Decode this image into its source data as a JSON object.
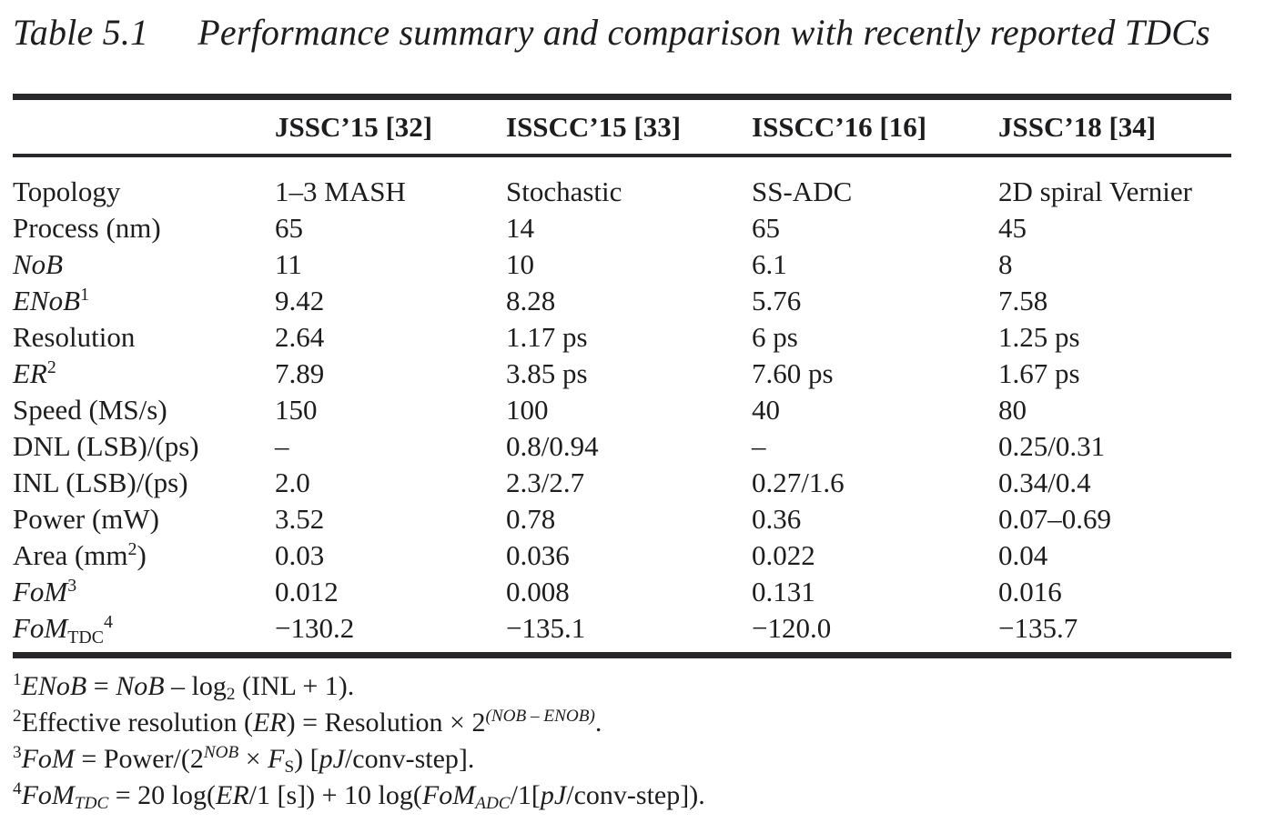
{
  "page": {
    "background_color": "#ffffff",
    "text_color": "#1d1d1f",
    "rule_color": "#28282a"
  },
  "title": {
    "label": "Table 5.1",
    "text": "Performance summary and comparison with recently reported TDCs"
  },
  "table": {
    "columns": [
      "",
      "JSSC’15 [32]",
      "ISSCC’15 [33]",
      "ISSCC’16 [16]",
      "JSSC’18 [34]"
    ],
    "rows": [
      {
        "label": [
          {
            "t": "Topology"
          }
        ],
        "values": [
          "1–3 MASH",
          "Stochastic",
          "SS-ADC",
          "2D spiral Vernier"
        ]
      },
      {
        "label": [
          {
            "t": "Process (nm)"
          }
        ],
        "values": [
          "65",
          "14",
          "65",
          "45"
        ]
      },
      {
        "label": [
          {
            "t": "NoB",
            "s": "i"
          }
        ],
        "values": [
          "11",
          "10",
          "6.1",
          "8"
        ]
      },
      {
        "label": [
          {
            "t": "ENoB",
            "s": "i"
          },
          {
            "t": "1",
            "s": "sup"
          }
        ],
        "values": [
          "9.42",
          "8.28",
          "5.76",
          "7.58"
        ]
      },
      {
        "label": [
          {
            "t": "Resolution"
          }
        ],
        "values": [
          "2.64",
          "1.17 ps",
          "6 ps",
          "1.25 ps"
        ]
      },
      {
        "label": [
          {
            "t": "ER",
            "s": "i"
          },
          {
            "t": "2",
            "s": "sup"
          }
        ],
        "values": [
          "7.89",
          "3.85 ps",
          "7.60 ps",
          "1.67 ps"
        ]
      },
      {
        "label": [
          {
            "t": "Speed (MS/s)"
          }
        ],
        "values": [
          "150",
          "100",
          "40",
          "80"
        ]
      },
      {
        "label": [
          {
            "t": "DNL (LSB)/(ps)"
          }
        ],
        "values": [
          "–",
          "0.8/0.94",
          "–",
          "0.25/0.31"
        ]
      },
      {
        "label": [
          {
            "t": "INL (LSB)/(ps)"
          }
        ],
        "values": [
          "2.0",
          "2.3/2.7",
          "0.27/1.6",
          "0.34/0.4"
        ]
      },
      {
        "label": [
          {
            "t": "Power (mW)"
          }
        ],
        "values": [
          "3.52",
          "0.78",
          "0.36",
          "0.07–0.69"
        ]
      },
      {
        "label": [
          {
            "t": "Area (mm"
          },
          {
            "t": "2",
            "s": "sup"
          },
          {
            "t": ")"
          }
        ],
        "values": [
          "0.03",
          "0.036",
          "0.022",
          "0.04"
        ]
      },
      {
        "label": [
          {
            "t": "FoM",
            "s": "i"
          },
          {
            "t": "3",
            "s": "sup"
          }
        ],
        "values": [
          "0.012",
          "0.008",
          "0.131",
          "0.016"
        ]
      },
      {
        "label": [
          {
            "t": "FoM",
            "s": "i"
          },
          {
            "t": "TDC",
            "s": "sub"
          },
          {
            "t": "4",
            "s": "sup"
          }
        ],
        "values": [
          "−130.2",
          "−135.1",
          "−120.0",
          "−135.7"
        ]
      }
    ]
  },
  "footnotes": [
    [
      {
        "t": "1",
        "s": "sup"
      },
      {
        "t": "ENoB",
        "s": "i"
      },
      {
        "t": " = "
      },
      {
        "t": "NoB",
        "s": "i"
      },
      {
        "t": " – log"
      },
      {
        "t": "2",
        "s": "sub"
      },
      {
        "t": " (INL + 1)."
      }
    ],
    [
      {
        "t": "2",
        "s": "sup"
      },
      {
        "t": "Effective resolution ("
      },
      {
        "t": "ER",
        "s": "i"
      },
      {
        "t": ") = Resolution × 2"
      },
      {
        "t": "(NOB – ENOB)",
        "s": "supi"
      },
      {
        "t": "."
      }
    ],
    [
      {
        "t": "3",
        "s": "sup"
      },
      {
        "t": "FoM",
        "s": "i"
      },
      {
        "t": " = Power/(2"
      },
      {
        "t": "NOB",
        "s": "supi"
      },
      {
        "t": " × "
      },
      {
        "t": "F",
        "s": "i"
      },
      {
        "t": "S",
        "s": "sub"
      },
      {
        "t": ") ["
      },
      {
        "t": "pJ",
        "s": "i"
      },
      {
        "t": "/conv-step]."
      }
    ],
    [
      {
        "t": "4",
        "s": "sup"
      },
      {
        "t": "FoM",
        "s": "i"
      },
      {
        "t": "TDC",
        "s": "subi"
      },
      {
        "t": " = 20 log("
      },
      {
        "t": "ER",
        "s": "i"
      },
      {
        "t": "/1 [s]) + 10 log("
      },
      {
        "t": "FoM",
        "s": "i"
      },
      {
        "t": "ADC",
        "s": "subi"
      },
      {
        "t": "/1["
      },
      {
        "t": "pJ",
        "s": "i"
      },
      {
        "t": "/conv-step])."
      }
    ]
  ]
}
